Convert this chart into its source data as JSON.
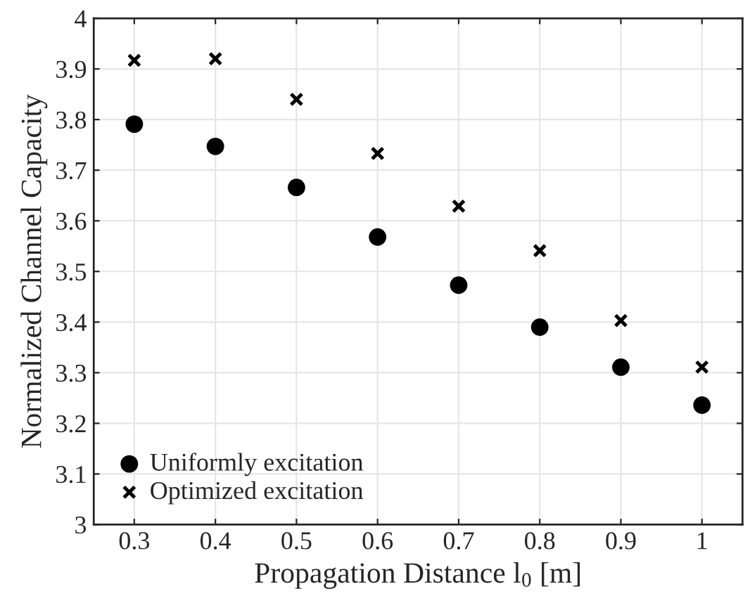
{
  "chart_data": {
    "type": "scatter",
    "xlabel": "Propagation Distance l$_{0}$ [m]",
    "ylabel": "Normalized Channel Capacity",
    "x": [
      0.3,
      0.4,
      0.5,
      0.6,
      0.7,
      0.8,
      0.9,
      1.0
    ],
    "series": [
      {
        "name": "Uniformly excitation",
        "color": "#000000",
        "marker": "circle",
        "values": [
          3.791,
          3.747,
          3.666,
          3.568,
          3.473,
          3.39,
          3.311,
          3.236
        ]
      },
      {
        "name": "Optimized excitation",
        "color": "#000000",
        "marker": "cross",
        "values": [
          3.917,
          3.92,
          3.84,
          3.733,
          3.629,
          3.541,
          3.403,
          3.311
        ]
      }
    ],
    "xlim": [
      0.25,
      1.05
    ],
    "xticks": [
      0.3,
      0.4,
      0.5,
      0.6,
      0.7,
      0.8,
      0.9,
      1
    ],
    "ylim": [
      3,
      4
    ],
    "yticks": [
      3,
      3.1,
      3.2,
      3.3,
      3.4,
      3.5,
      3.6,
      3.7,
      3.8,
      3.9,
      4
    ],
    "grid": true,
    "legend": "bottom left"
  }
}
